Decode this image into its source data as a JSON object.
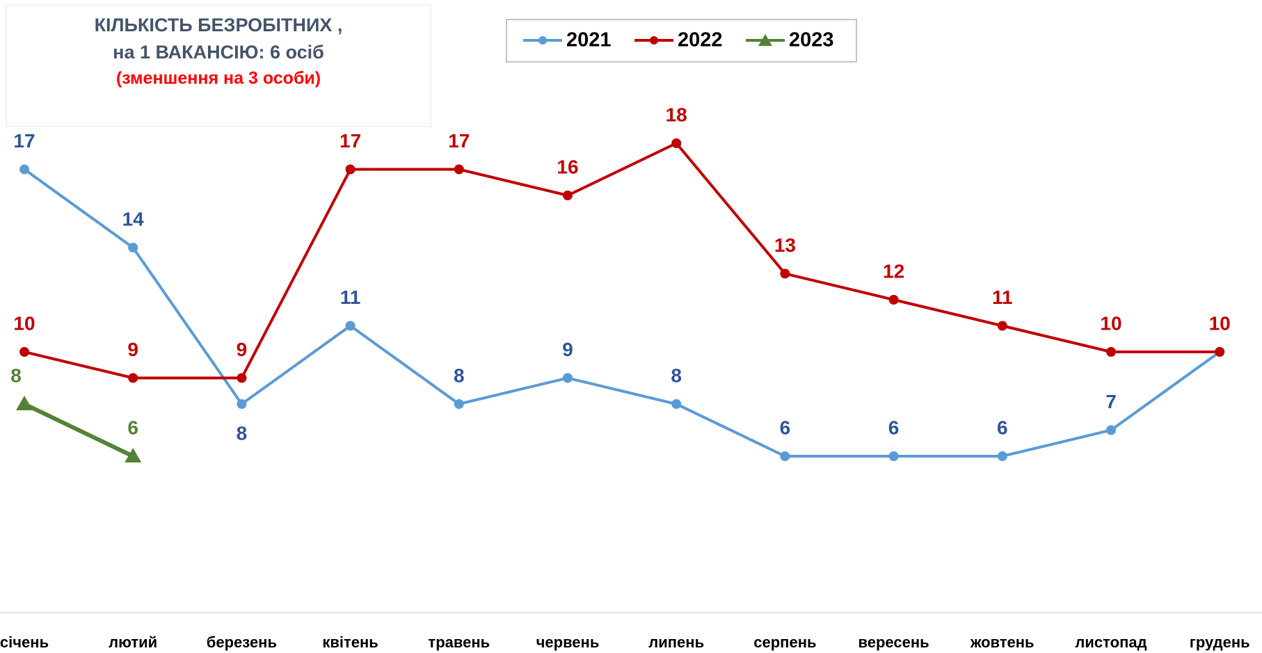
{
  "chart_data": {
    "type": "line",
    "title": [
      "КІЛЬКІСТЬ БЕЗРОБІТНИХ ,",
      "на 1 ВАКАНСІЮ: 6 осіб"
    ],
    "subtitle": "(зменшення на 3 особи)",
    "categories": [
      "січень",
      "лютий",
      "березень",
      "квітень",
      "травень",
      "червень",
      "липень",
      "серпень",
      "вересень",
      "жовтень",
      "листопад",
      "грудень"
    ],
    "series": [
      {
        "name": "2021",
        "color": "#5b9bd5",
        "label_color": "#2f5597",
        "marker": "circle",
        "values": [
          17,
          14,
          8,
          11,
          8,
          9,
          8,
          6,
          6,
          6,
          7,
          10
        ]
      },
      {
        "name": "2022",
        "color": "#c00000",
        "label_color": "#c00000",
        "marker": "circle",
        "values": [
          10,
          9,
          9,
          17,
          17,
          16,
          18,
          13,
          12,
          11,
          10,
          10
        ]
      },
      {
        "name": "2023",
        "color": "#548235",
        "label_color": "#548235",
        "marker": "triangle",
        "values": [
          8,
          6,
          null,
          null,
          null,
          null,
          null,
          null,
          null,
          null,
          null,
          null
        ]
      }
    ],
    "ylim": [
      0,
      20
    ],
    "grid": false,
    "legend": "top"
  }
}
